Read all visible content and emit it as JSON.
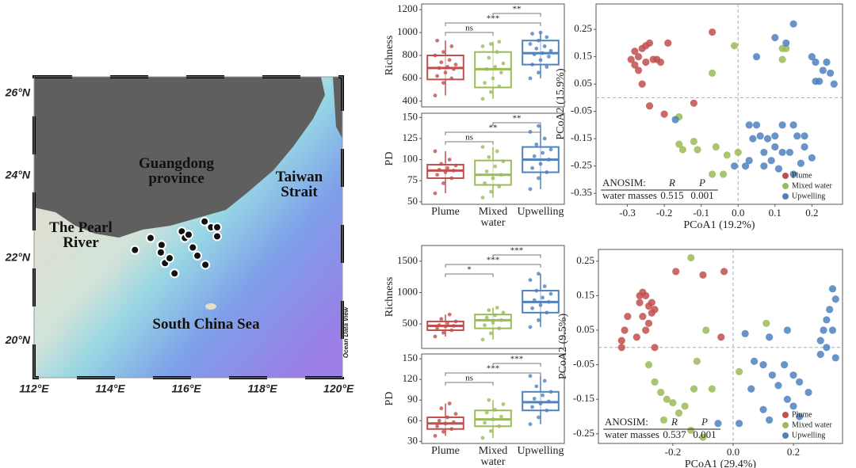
{
  "chart_data": [
    {
      "type": "map",
      "xlim": [
        112,
        120.1
      ],
      "ylim": [
        19.1,
        26.4
      ],
      "xticks": [
        {
          "value": 112,
          "label": "112°E"
        },
        {
          "value": 114,
          "label": "114°E"
        },
        {
          "value": 116,
          "label": "116°E"
        },
        {
          "value": 118,
          "label": "118°E"
        },
        {
          "value": 120,
          "label": "120°E"
        }
      ],
      "yticks": [
        {
          "value": 20,
          "label": "20°N"
        },
        {
          "value": 22,
          "label": "22°N"
        },
        {
          "value": 24,
          "label": "24°N"
        },
        {
          "value": 26,
          "label": "26°N"
        }
      ],
      "x": [
        114.65,
        115.06,
        115.35,
        115.33,
        115.44,
        115.56,
        115.69,
        115.88,
        115.96,
        116.06,
        116.17,
        116.29,
        116.5,
        116.48,
        116.65,
        116.81,
        116.81
      ],
      "y": [
        22.2,
        22.49,
        22.32,
        22.14,
        21.88,
        22.0,
        21.63,
        22.65,
        22.49,
        22.57,
        22.26,
        22.06,
        21.84,
        22.89,
        22.75,
        22.75,
        22.53
      ],
      "color": "#111111",
      "labels": [
        "Guangdong province",
        "Taiwan Strait",
        "The Pearl River",
        "South China Sea"
      ],
      "credit": "Ocean Data View"
    },
    {
      "type": "box",
      "categories": [
        "Plume",
        "Mixed water",
        "Upwelling"
      ],
      "colors": [
        "#c0504d",
        "#9bbb59",
        "#4f81bd"
      ],
      "panels": [
        {
          "ylabel": "Richness",
          "ylim": [
            350,
            1250
          ],
          "yticks": [
            400,
            600,
            800,
            1000,
            1200
          ],
          "boxes": [
            {
              "min": 450,
              "q1": 590,
              "median": 690,
              "q3": 800,
              "max": 930,
              "points": [
                450,
                560,
                600,
                620,
                650,
                680,
                690,
                700,
                720,
                740,
                760,
                800,
                830,
                880,
                930
              ]
            },
            {
              "min": 420,
              "q1": 520,
              "median": 680,
              "q3": 830,
              "max": 920,
              "points": [
                420,
                480,
                530,
                560,
                600,
                650,
                680,
                700,
                730,
                780,
                830,
                880,
                900,
                920
              ]
            },
            {
              "min": 600,
              "q1": 720,
              "median": 820,
              "q3": 930,
              "max": 1000,
              "points": [
                600,
                650,
                700,
                720,
                760,
                790,
                810,
                820,
                840,
                860,
                880,
                900,
                930,
                960,
                990,
                1000
              ]
            }
          ],
          "comparisons": [
            {
              "between": [
                "Plume",
                "Mixed water"
              ],
              "label": "ns"
            },
            {
              "between": [
                "Plume",
                "Upwelling"
              ],
              "label": "***"
            },
            {
              "between": [
                "Mixed water",
                "Upwelling"
              ],
              "label": "**"
            }
          ]
        },
        {
          "ylabel": "PD",
          "ylim": [
            47,
            155
          ],
          "yticks": [
            50,
            75,
            100,
            125,
            150
          ],
          "boxes": [
            {
              "min": 60,
              "q1": 78,
              "median": 87,
              "q3": 94,
              "max": 110,
              "points": [
                60,
                72,
                78,
                82,
                85,
                87,
                88,
                90,
                93,
                95,
                100,
                110
              ]
            },
            {
              "min": 55,
              "q1": 70,
              "median": 82,
              "q3": 99,
              "max": 115,
              "points": [
                55,
                62,
                68,
                72,
                78,
                82,
                86,
                92,
                98,
                103,
                110,
                115
              ]
            },
            {
              "min": 65,
              "q1": 85,
              "median": 100,
              "q3": 115,
              "max": 140,
              "points": [
                65,
                78,
                85,
                90,
                95,
                100,
                104,
                108,
                112,
                118,
                125,
                133,
                140
              ]
            }
          ],
          "comparisons": [
            {
              "between": [
                "Plume",
                "Mixed water"
              ],
              "label": "ns"
            },
            {
              "between": [
                "Plume",
                "Upwelling"
              ],
              "label": "**"
            },
            {
              "between": [
                "Mixed water",
                "Upwelling"
              ],
              "label": "**"
            }
          ]
        }
      ]
    },
    {
      "type": "scatter",
      "xlabel": "PCoA1 (19.2%)",
      "ylabel": "PCoA2 (15.9%)",
      "xlim": [
        -0.385,
        0.283
      ],
      "ylim": [
        -0.39,
        0.343
      ],
      "xticks": [
        -0.3,
        -0.2,
        -0.1,
        {
          "value": 0,
          "label": "0.0"
        },
        0.1,
        0.2
      ],
      "yticks": [
        0.25,
        0.15,
        0.05,
        -0.05,
        -0.15,
        -0.25,
        -0.35
      ],
      "zero_lines": true,
      "legend": "lower right",
      "series": [
        {
          "name": "Plume",
          "color": "#c0504d",
          "x": [
            -0.29,
            -0.28,
            -0.27,
            -0.26,
            -0.25,
            -0.24,
            -0.27,
            -0.26,
            -0.28,
            -0.23,
            -0.22,
            -0.25,
            -0.21,
            -0.19,
            -0.07,
            -0.24,
            -0.2,
            -0.12
          ],
          "y": [
            0.14,
            0.17,
            0.15,
            0.18,
            0.19,
            0.2,
            0.1,
            0.05,
            0.12,
            0.14,
            0.14,
            0.13,
            0.13,
            0.2,
            0.24,
            -0.03,
            -0.06,
            -0.02
          ]
        },
        {
          "name": "Mixed water",
          "color": "#9bbb59",
          "x": [
            -0.01,
            -0.07,
            -0.16,
            -0.16,
            -0.15,
            -0.12,
            -0.11,
            -0.06,
            -0.03,
            0.0,
            -0.07,
            -0.04,
            0.12,
            0.13,
            0.12
          ],
          "y": [
            0.19,
            0.09,
            -0.07,
            -0.17,
            -0.19,
            -0.16,
            -0.19,
            -0.18,
            -0.21,
            -0.2,
            -0.28,
            -0.28,
            0.18,
            0.18,
            0.14
          ]
        },
        {
          "name": "Upwelling",
          "color": "#4f81bd",
          "x": [
            0.1,
            0.05,
            0.13,
            0.15,
            0.2,
            0.21,
            0.24,
            0.25,
            0.23,
            0.22,
            0.21,
            0.26,
            0.03,
            0.05,
            0.04,
            0.06,
            0.08,
            0.1,
            0.12,
            0.15,
            0.16,
            0.18,
            0.18,
            0.14,
            0.1,
            0.12,
            0.07,
            0.07,
            0.11,
            0.17,
            0.2,
            0.02,
            -0.01,
            0.03,
            -0.17,
            0.09,
            0.15
          ],
          "y": [
            0.22,
            0.15,
            0.2,
            0.27,
            0.15,
            0.13,
            0.13,
            0.09,
            0.1,
            0.06,
            0.06,
            0.05,
            -0.1,
            -0.1,
            -0.15,
            -0.14,
            -0.15,
            -0.14,
            -0.1,
            -0.1,
            -0.14,
            -0.14,
            -0.18,
            -0.2,
            -0.18,
            -0.2,
            -0.2,
            -0.25,
            -0.26,
            -0.24,
            -0.22,
            -0.25,
            -0.25,
            -0.23,
            -0.08,
            -0.23,
            -0.28
          ]
        }
      ],
      "anosim": {
        "title": "ANOSIM:",
        "columns": [
          "R",
          "P"
        ],
        "row": "water masses",
        "values": [
          0.515,
          0.001
        ]
      }
    },
    {
      "type": "box",
      "categories": [
        "Plume",
        "Mixed water",
        "Upwelling"
      ],
      "colors": [
        "#c0504d",
        "#9bbb59",
        "#4f81bd"
      ],
      "panels": [
        {
          "ylabel": "Richness",
          "ylim": [
            110,
            1750
          ],
          "yticks": [
            500,
            1000,
            1500
          ],
          "boxes": [
            {
              "min": 300,
              "q1": 400,
              "median": 470,
              "q3": 540,
              "max": 650,
              "points": [
                300,
                360,
                400,
                430,
                460,
                470,
                480,
                510,
                540,
                580,
                650
              ]
            },
            {
              "min": 250,
              "q1": 430,
              "median": 560,
              "q3": 650,
              "max": 760,
              "points": [
                250,
                350,
                430,
                480,
                520,
                560,
                600,
                640,
                680,
                720,
                760
              ]
            },
            {
              "min": 450,
              "q1": 680,
              "median": 850,
              "q3": 1030,
              "max": 1300,
              "points": [
                450,
                560,
                680,
                750,
                800,
                850,
                880,
                920,
                980,
                1030,
                1100,
                1200,
                1300
              ]
            }
          ],
          "comparisons": [
            {
              "between": [
                "Plume",
                "Mixed water"
              ],
              "label": "*"
            },
            {
              "between": [
                "Plume",
                "Upwelling"
              ],
              "label": "***"
            },
            {
              "between": [
                "Mixed water",
                "Upwelling"
              ],
              "label": "***"
            }
          ]
        },
        {
          "ylabel": "PD",
          "ylim": [
            27,
            157
          ],
          "yticks": [
            30,
            60,
            90,
            120,
            150
          ],
          "boxes": [
            {
              "min": 38,
              "q1": 48,
              "median": 56,
              "q3": 65,
              "max": 85,
              "points": [
                38,
                44,
                48,
                52,
                56,
                58,
                60,
                65,
                70,
                78,
                85
              ]
            },
            {
              "min": 35,
              "q1": 52,
              "median": 62,
              "q3": 75,
              "max": 90,
              "points": [
                35,
                45,
                52,
                57,
                62,
                66,
                72,
                76,
                84,
                90
              ]
            },
            {
              "min": 55,
              "q1": 75,
              "median": 87,
              "q3": 102,
              "max": 125,
              "points": [
                55,
                65,
                75,
                80,
                85,
                88,
                92,
                97,
                102,
                110,
                118,
                125
              ]
            }
          ],
          "comparisons": [
            {
              "between": [
                "Plume",
                "Mixed water"
              ],
              "label": "ns"
            },
            {
              "between": [
                "Plume",
                "Upwelling"
              ],
              "label": "***"
            },
            {
              "between": [
                "Mixed water",
                "Upwelling"
              ],
              "label": "***"
            }
          ]
        }
      ]
    },
    {
      "type": "scatter",
      "xlabel": "PCoA1 (29.4%)",
      "ylabel": "PCoA2 (9.5%)",
      "xlim": [
        -0.447,
        0.363
      ],
      "ylim": [
        -0.278,
        0.284
      ],
      "xticks": [
        -0.2,
        {
          "value": 0,
          "label": "0.0"
        },
        0.2
      ],
      "yticks": [
        0.25,
        0.15,
        0.05,
        -0.05,
        -0.15,
        -0.25
      ],
      "zero_lines": true,
      "legend": "lower right",
      "series": [
        {
          "name": "Plume",
          "color": "#c0504d",
          "x": [
            -0.3,
            -0.29,
            -0.28,
            -0.27,
            -0.27,
            -0.26,
            -0.28,
            -0.29,
            -0.3,
            -0.32,
            -0.35,
            -0.36,
            -0.37,
            -0.37,
            -0.31,
            -0.31,
            -0.19,
            -0.1,
            -0.03,
            -0.26,
            -0.04
          ],
          "y": [
            0.16,
            0.15,
            0.12,
            0.13,
            0.1,
            0.11,
            0.07,
            0.05,
            0.09,
            0.03,
            0.09,
            0.05,
            0.02,
            0.0,
            0.13,
            0.15,
            0.22,
            0.21,
            0.22,
            0.0,
            0.03
          ]
        },
        {
          "name": "Mixed water",
          "color": "#9bbb59",
          "x": [
            -0.14,
            -0.09,
            -0.12,
            -0.28,
            -0.26,
            -0.24,
            -0.22,
            -0.2,
            -0.18,
            -0.16,
            -0.13,
            -0.07,
            0.02,
            0.11,
            -0.23,
            -0.14,
            -0.1
          ],
          "y": [
            0.26,
            0.05,
            -0.04,
            -0.05,
            -0.1,
            -0.13,
            -0.15,
            -0.16,
            -0.19,
            -0.17,
            -0.12,
            -0.12,
            -0.07,
            0.07,
            -0.21,
            -0.24,
            -0.26
          ]
        },
        {
          "name": "Upwelling",
          "color": "#4f81bd",
          "x": [
            0.33,
            0.34,
            0.32,
            0.31,
            0.33,
            0.3,
            0.29,
            0.31,
            0.04,
            0.12,
            0.18,
            0.07,
            0.1,
            0.13,
            0.17,
            0.2,
            0.22,
            0.15,
            0.06,
            0.18,
            0.2,
            0.22,
            0.1,
            0.12,
            0.02,
            0.25,
            0.29,
            0.34,
            -0.05
          ],
          "y": [
            0.17,
            0.14,
            0.11,
            0.08,
            0.05,
            0.05,
            0.02,
            0.0,
            0.04,
            0.03,
            0.05,
            -0.04,
            -0.05,
            -0.08,
            -0.05,
            -0.08,
            -0.1,
            -0.11,
            -0.12,
            -0.15,
            -0.17,
            -0.2,
            -0.18,
            -0.21,
            -0.22,
            -0.13,
            -0.02,
            -0.03,
            -0.22
          ]
        }
      ],
      "anosim": {
        "title": "ANOSIM:",
        "columns": [
          "R",
          "P"
        ],
        "row": "water masses",
        "values": [
          0.537,
          0.001
        ]
      }
    }
  ]
}
